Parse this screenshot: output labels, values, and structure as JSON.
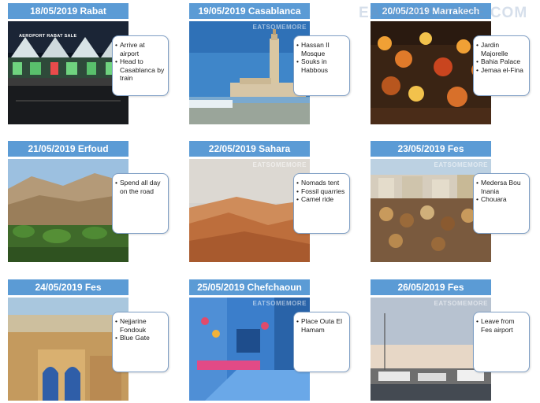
{
  "watermark": "EATSOMEMORE.COM",
  "photo_mark": "EATSOMEMORE",
  "cards": [
    {
      "title": "18/05/2019 Rabat",
      "photo_sign": "AEROPORT  RABAT SALE",
      "notes": [
        "Arrive at airport",
        "Head to Casablanca by train"
      ]
    },
    {
      "title": "19/05/2019 Casablanca",
      "notes": [
        "Hassan II Mosque",
        "Souks in Habbous"
      ]
    },
    {
      "title": "20/05/2019 Marrakech",
      "notes": [
        "Jardin Majorelle",
        "Bahia Palace",
        "Jemaa el-Fina"
      ]
    },
    {
      "title": "21/05/2019 Erfoud",
      "notes": [
        "Spend all day on the road"
      ]
    },
    {
      "title": "22/05/2019 Sahara",
      "notes": [
        "Nomads tent",
        "Fossil quarries",
        "Camel ride"
      ]
    },
    {
      "title": "23/05/2019 Fes",
      "notes": [
        "Medersa Bou Inania",
        "Chouara"
      ]
    },
    {
      "title": "24/05/2019 Fes",
      "notes": [
        "Nejjarine Fondouk",
        "Blue Gate"
      ]
    },
    {
      "title": "25/05/2019 Chefchaoun",
      "notes": [
        "Place Outa El Hamam"
      ]
    },
    {
      "title": "26/05/2019 Fes",
      "notes": [
        "Leave from Fes airport"
      ]
    }
  ]
}
